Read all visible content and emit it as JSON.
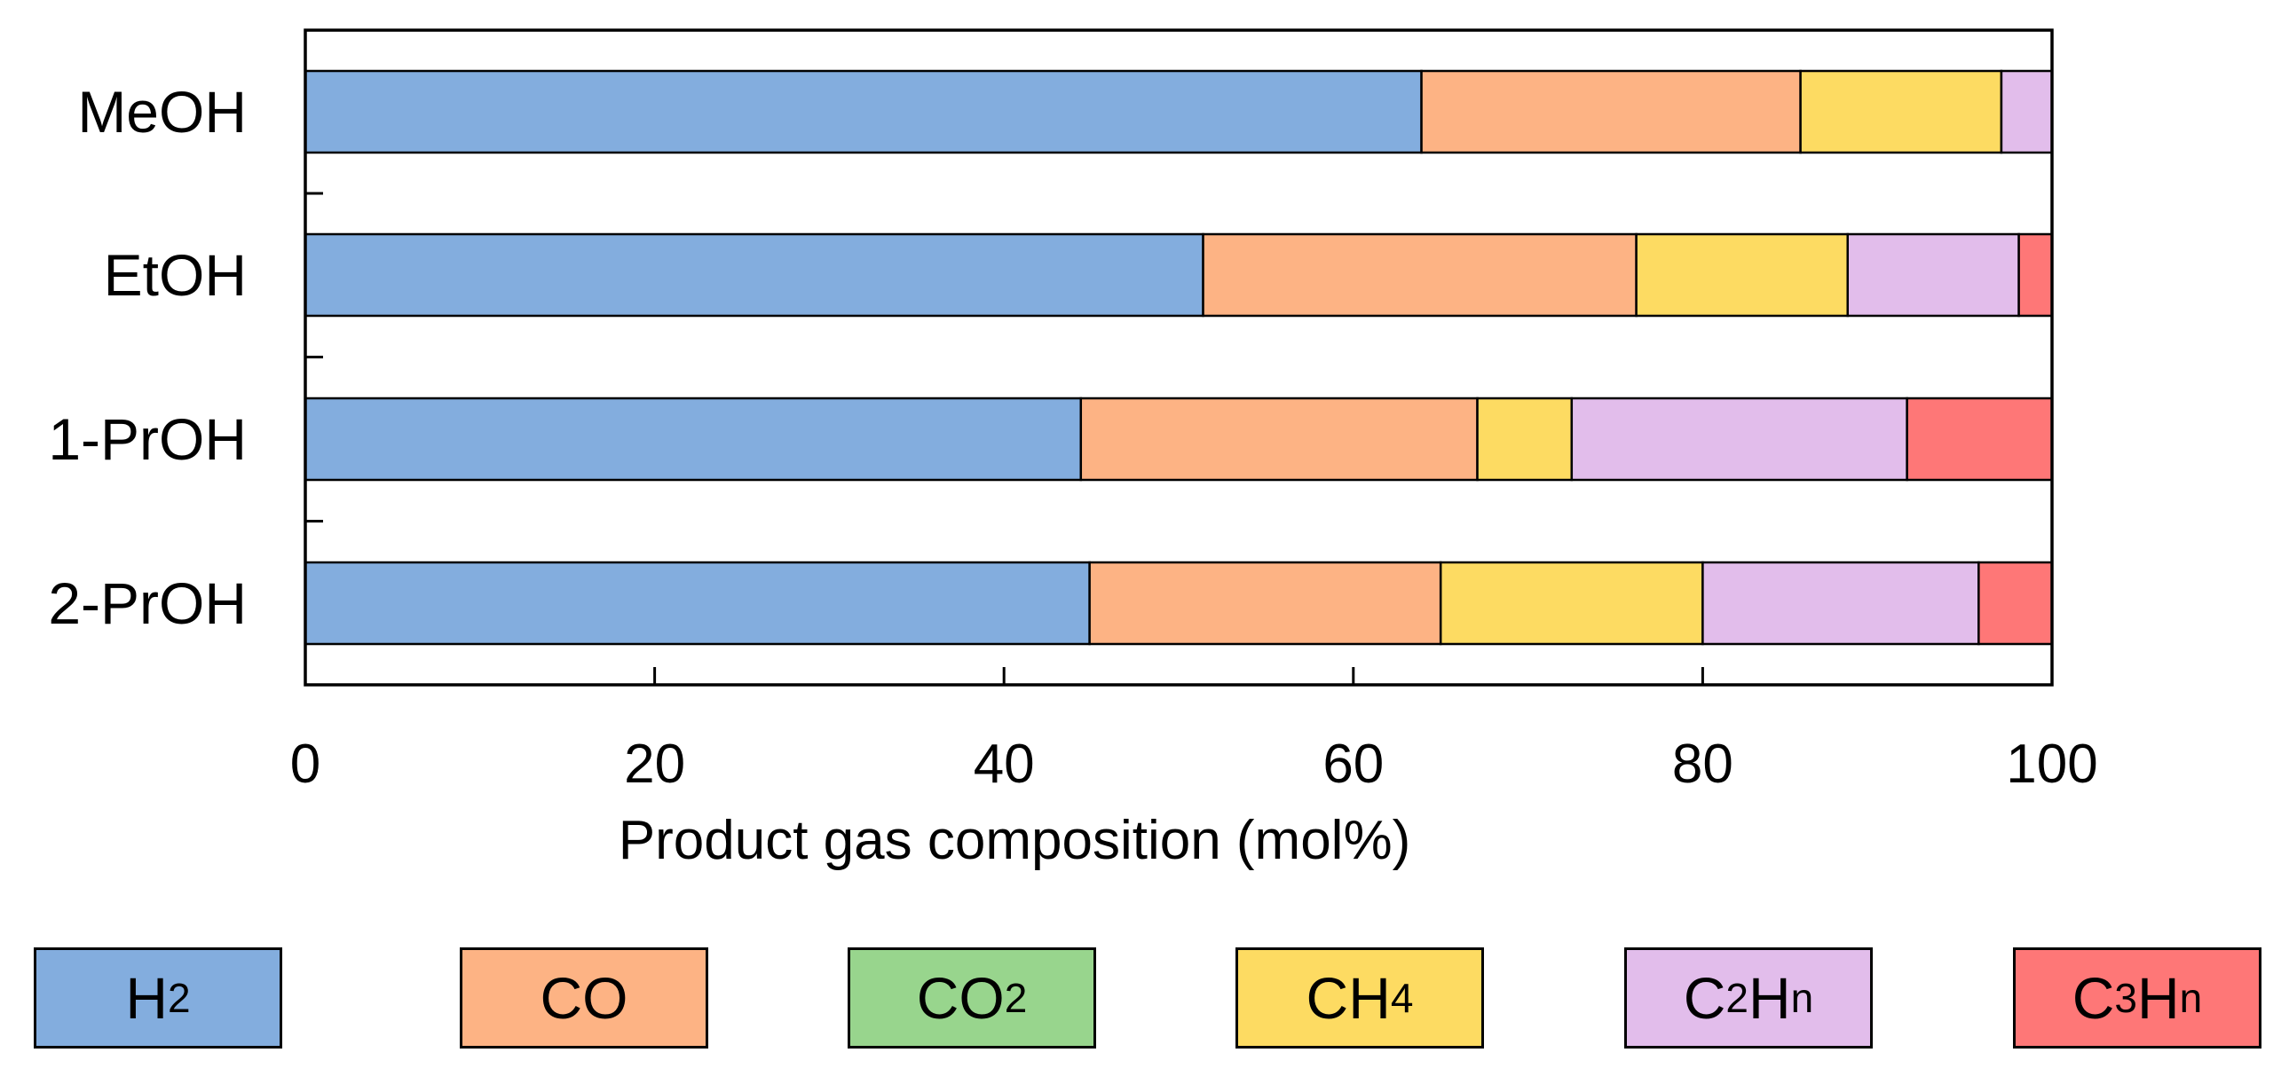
{
  "chart_data": {
    "type": "bar",
    "orientation": "horizontal",
    "stacked": true,
    "categories": [
      "MeOH",
      "EtOH",
      "1-PrOH",
      "2-PrOH"
    ],
    "series": [
      {
        "name": "H2",
        "label_main": "H",
        "label_sub": "2",
        "color": "#83ADDE",
        "values": [
          63.9,
          51.4,
          44.4,
          44.9
        ]
      },
      {
        "name": "CO",
        "label_main": "CO",
        "label_sub": "",
        "color": "#FDB384",
        "values": [
          21.7,
          24.8,
          22.7,
          20.1
        ]
      },
      {
        "name": "CO2",
        "label_main": "CO",
        "label_sub": "2",
        "color": "#98D58D",
        "values": [
          0,
          0,
          0,
          0
        ]
      },
      {
        "name": "CH4",
        "label_main": "CH",
        "label_sub": "4",
        "color": "#FDDB62",
        "values": [
          11.5,
          12.1,
          5.4,
          15.0
        ]
      },
      {
        "name": "C2Hn",
        "label_main": "C",
        "label_sub": "2",
        "label_main2": "H",
        "label_sub2": "n",
        "color": "#E2BDEB",
        "values": [
          2.9,
          9.8,
          19.2,
          15.8
        ]
      },
      {
        "name": "C3Hn",
        "label_main": "C",
        "label_sub": "3",
        "label_main2": "H",
        "label_sub2": "n",
        "color": "#FE7777",
        "values": [
          0.0,
          1.9,
          8.3,
          4.2
        ]
      }
    ],
    "xlim": [
      0,
      100
    ],
    "xticks": [
      "0",
      "20",
      "40",
      "60",
      "80",
      "100"
    ],
    "xlabel": "Product gas composition (mol%)",
    "ylabel": "",
    "title": "",
    "legend_position": "bottom",
    "grid": false
  }
}
